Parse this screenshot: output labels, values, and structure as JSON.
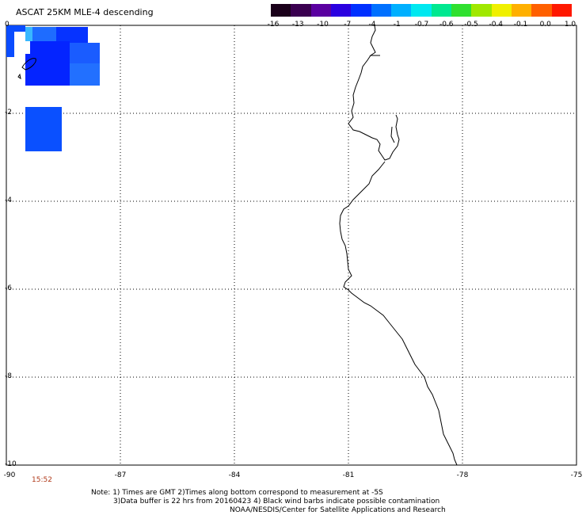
{
  "title": "ASCAT 25KM MLE-4 descending",
  "colorbar": {
    "labels": [
      "-16",
      "-13",
      "-10",
      "-7",
      "-4",
      "-1",
      "-0.7",
      "-0.6",
      "-0.5",
      "-0.4",
      "-0.1",
      "0.0",
      "1.0"
    ],
    "colors": [
      "#1a001a",
      "#3a0050",
      "#5a00a0",
      "#2a00e0",
      "#0030ff",
      "#0070ff",
      "#00b0ff",
      "#00e8f0",
      "#00e890",
      "#30e030",
      "#a0e800",
      "#f0f000",
      "#ffb000",
      "#ff6000",
      "#ff1800"
    ]
  },
  "axes": {
    "y_ticks": [
      "0",
      "-2",
      "-4",
      "-6",
      "-8",
      "-10"
    ],
    "x_ticks": [
      "-90",
      "-87",
      "-84",
      "-81",
      "-78",
      "-75"
    ],
    "xlim": [
      -90,
      -75
    ],
    "ylim": [
      -10,
      0
    ]
  },
  "time_label": "15:52",
  "notes": {
    "line1": "Note: 1) Times are GMT 2)Times along bottom correspond to measurement at -5S",
    "line2": "3)Data buffer is 22 hrs from 20160423 4) Black wind barbs indicate possible contamination",
    "line3": "NOAA/NESDIS/Center for Satellite Applications and Research"
  }
}
